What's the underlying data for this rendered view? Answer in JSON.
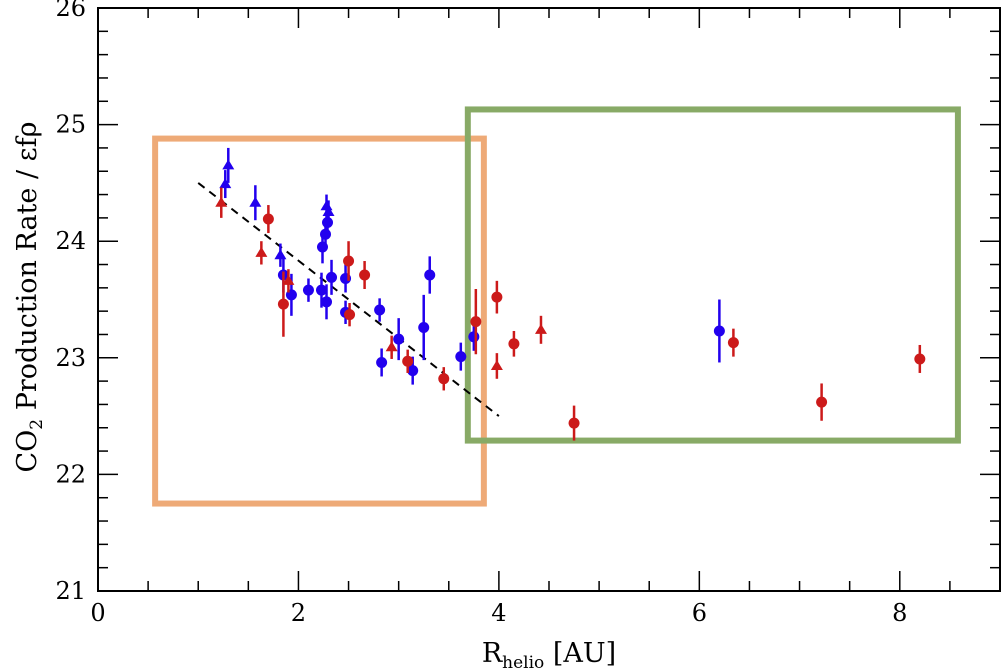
{
  "chart_data": {
    "type": "scatter",
    "xlabel": {
      "main": "R",
      "sub": "helio",
      "rest": " [AU]"
    },
    "ylabel": {
      "pre": "CO",
      "sub": "2",
      "rest": " Production Rate / εfρ"
    },
    "xlim": [
      0,
      9
    ],
    "ylim": [
      21,
      26
    ],
    "x_major_ticks": [
      0,
      2,
      4,
      6,
      8
    ],
    "x_minor_step": 0.5,
    "y_major_ticks": [
      21,
      22,
      23,
      24,
      25,
      26
    ],
    "y_minor_step": 0.2,
    "colors": {
      "blue": "#2200ee",
      "red": "#cc1a1a",
      "fit": "#000000",
      "orange_box": "#eeaa77",
      "green_box": "#88aa66"
    },
    "series": [
      {
        "name": "blue-circles",
        "color": "blue",
        "marker": "circle",
        "points": [
          {
            "x": 1.85,
            "y": 23.71,
            "err": 0.15
          },
          {
            "x": 1.93,
            "y": 23.54,
            "err": 0.18
          },
          {
            "x": 2.1,
            "y": 23.58,
            "err": 0.1
          },
          {
            "x": 2.23,
            "y": 23.58,
            "err": 0.15
          },
          {
            "x": 2.24,
            "y": 23.95,
            "err": 0.14
          },
          {
            "x": 2.27,
            "y": 24.06,
            "err": 0.12
          },
          {
            "x": 2.29,
            "y": 24.16,
            "err": 0.12
          },
          {
            "x": 2.28,
            "y": 23.48,
            "err": 0.15
          },
          {
            "x": 2.33,
            "y": 23.69,
            "err": 0.15
          },
          {
            "x": 2.47,
            "y": 23.68,
            "err": 0.12
          },
          {
            "x": 2.47,
            "y": 23.39,
            "err": 0.1
          },
          {
            "x": 2.81,
            "y": 23.41,
            "err": 0.1
          },
          {
            "x": 2.83,
            "y": 22.96,
            "err": 0.12
          },
          {
            "x": 3.0,
            "y": 23.16,
            "err": 0.18
          },
          {
            "x": 3.14,
            "y": 22.89,
            "err": 0.12
          },
          {
            "x": 3.25,
            "y": 23.26,
            "err": 0.28
          },
          {
            "x": 3.31,
            "y": 23.71,
            "err": 0.16
          },
          {
            "x": 3.62,
            "y": 23.01,
            "err": 0.12
          },
          {
            "x": 3.75,
            "y": 23.18,
            "err": 0.12
          },
          {
            "x": 6.2,
            "y": 23.23,
            "err": 0.27
          }
        ]
      },
      {
        "name": "blue-triangles",
        "color": "blue",
        "marker": "triangle",
        "points": [
          {
            "x": 1.27,
            "y": 24.49,
            "err": 0.12
          },
          {
            "x": 1.3,
            "y": 24.65,
            "err": 0.15
          },
          {
            "x": 1.57,
            "y": 24.33,
            "err": 0.15
          },
          {
            "x": 1.82,
            "y": 23.88,
            "err": 0.1
          },
          {
            "x": 2.28,
            "y": 24.3,
            "err": 0.1
          },
          {
            "x": 2.3,
            "y": 24.25,
            "err": 0.1
          }
        ]
      },
      {
        "name": "red-circles",
        "color": "red",
        "marker": "circle",
        "points": [
          {
            "x": 1.7,
            "y": 24.19,
            "err": 0.12
          },
          {
            "x": 1.85,
            "y": 23.46,
            "err": 0.28
          },
          {
            "x": 2.5,
            "y": 23.83,
            "err": 0.17
          },
          {
            "x": 2.51,
            "y": 23.37,
            "err": 0.1
          },
          {
            "x": 2.66,
            "y": 23.71,
            "err": 0.12
          },
          {
            "x": 3.09,
            "y": 22.97,
            "err": 0.1
          },
          {
            "x": 3.45,
            "y": 22.82,
            "err": 0.1
          },
          {
            "x": 3.77,
            "y": 23.31,
            "err": 0.28
          },
          {
            "x": 3.98,
            "y": 23.52,
            "err": 0.14
          },
          {
            "x": 4.15,
            "y": 23.12,
            "err": 0.11
          },
          {
            "x": 4.75,
            "y": 22.44,
            "err": 0.15
          },
          {
            "x": 6.34,
            "y": 23.13,
            "err": 0.12
          },
          {
            "x": 7.22,
            "y": 22.62,
            "err": 0.16
          },
          {
            "x": 8.2,
            "y": 22.99,
            "err": 0.12
          }
        ]
      },
      {
        "name": "red-triangles",
        "color": "red",
        "marker": "triangle",
        "points": [
          {
            "x": 1.23,
            "y": 24.33,
            "err": 0.13
          },
          {
            "x": 1.63,
            "y": 23.9,
            "err": 0.1
          },
          {
            "x": 1.9,
            "y": 23.66,
            "err": 0.1
          },
          {
            "x": 2.93,
            "y": 23.09,
            "err": 0.1
          },
          {
            "x": 3.98,
            "y": 22.93,
            "err": 0.11
          },
          {
            "x": 4.42,
            "y": 23.24,
            "err": 0.12
          }
        ]
      }
    ],
    "fit_line": {
      "x": [
        1.0,
        4.0
      ],
      "y": [
        24.5,
        22.5
      ],
      "style": "dashed"
    },
    "highlight_boxes": [
      {
        "name": "orange-box",
        "color": "orange_box",
        "x": [
          0.57,
          3.85
        ],
        "y": [
          21.75,
          24.88
        ]
      },
      {
        "name": "green-box",
        "color": "green_box",
        "x": [
          3.69,
          8.58
        ],
        "y": [
          22.29,
          25.13
        ]
      }
    ]
  }
}
